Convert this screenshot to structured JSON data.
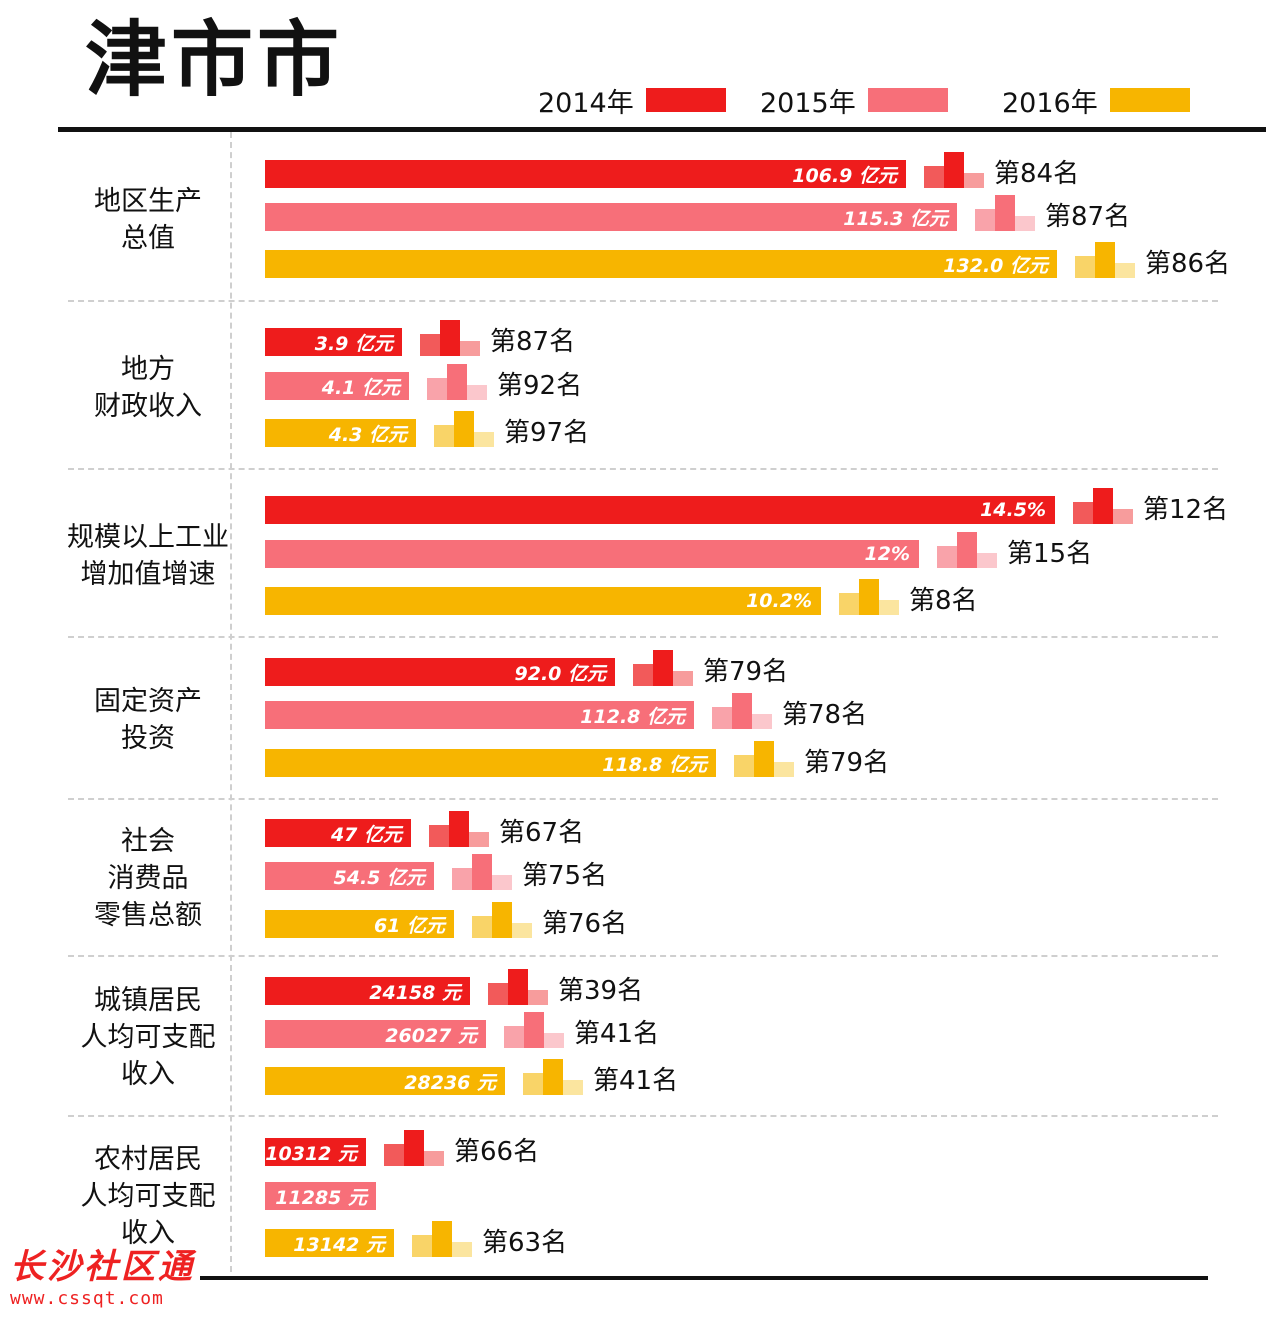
{
  "title": "津市市",
  "legend": [
    {
      "label": "2014年",
      "color": "#ee1c1c"
    },
    {
      "label": "2015年",
      "color": "#f76f79"
    },
    {
      "label": "2016年",
      "color": "#f7b500"
    }
  ],
  "watermark": {
    "name": "长沙社区通",
    "url": "www.cssqt.com"
  },
  "chart_data": {
    "type": "bar",
    "orientation": "horizontal",
    "title": "津市市",
    "series_names": [
      "2014年",
      "2015年",
      "2016年"
    ],
    "categories": [
      {
        "label_lines": [
          "地区生产",
          "总值"
        ],
        "items": [
          {
            "year": "2014年",
            "value": 106.9,
            "value_label": "106.9 亿元",
            "rank_label": "第84名"
          },
          {
            "year": "2015年",
            "value": 115.3,
            "value_label": "115.3 亿元",
            "rank_label": "第87名"
          },
          {
            "year": "2016年",
            "value": 132.0,
            "value_label": "132.0 亿元",
            "rank_label": "第86名"
          }
        ]
      },
      {
        "label_lines": [
          "地方",
          "财政收入"
        ],
        "items": [
          {
            "year": "2014年",
            "value": 3.9,
            "value_label": "3.9 亿元",
            "rank_label": "第87名"
          },
          {
            "year": "2015年",
            "value": 4.1,
            "value_label": "4.1 亿元",
            "rank_label": "第92名"
          },
          {
            "year": "2016年",
            "value": 4.3,
            "value_label": "4.3 亿元",
            "rank_label": "第97名"
          }
        ]
      },
      {
        "label_lines": [
          "规模以上工业",
          "增加值增速"
        ],
        "items": [
          {
            "year": "2014年",
            "value": 14.5,
            "value_label": "14.5%",
            "rank_label": "第12名"
          },
          {
            "year": "2015年",
            "value": 12,
            "value_label": "12%",
            "rank_label": "第15名"
          },
          {
            "year": "2016年",
            "value": 10.2,
            "value_label": "10.2%",
            "rank_label": "第8名"
          }
        ]
      },
      {
        "label_lines": [
          "固定资产",
          "投资"
        ],
        "items": [
          {
            "year": "2014年",
            "value": 92.0,
            "value_label": "92.0 亿元",
            "rank_label": "第79名"
          },
          {
            "year": "2015年",
            "value": 112.8,
            "value_label": "112.8 亿元",
            "rank_label": "第78名"
          },
          {
            "year": "2016年",
            "value": 118.8,
            "value_label": "118.8 亿元",
            "rank_label": "第79名"
          }
        ]
      },
      {
        "label_lines": [
          "社会",
          "消费品",
          "零售总额"
        ],
        "items": [
          {
            "year": "2014年",
            "value": 47,
            "value_label": "47 亿元",
            "rank_label": "第67名"
          },
          {
            "year": "2015年",
            "value": 54.5,
            "value_label": "54.5 亿元",
            "rank_label": "第75名"
          },
          {
            "year": "2016年",
            "value": 61,
            "value_label": "61 亿元",
            "rank_label": "第76名"
          }
        ]
      },
      {
        "label_lines": [
          "城镇居民",
          "人均可支配",
          "收入"
        ],
        "items": [
          {
            "year": "2014年",
            "value": 24158,
            "value_label": "24158 元",
            "rank_label": "第39名"
          },
          {
            "year": "2015年",
            "value": 26027,
            "value_label": "26027 元",
            "rank_label": "第41名"
          },
          {
            "year": "2016年",
            "value": 28236,
            "value_label": "28236 元",
            "rank_label": "第41名"
          }
        ]
      },
      {
        "label_lines": [
          "农村居民",
          "人均可支配",
          "收入"
        ],
        "items": [
          {
            "year": "2014年",
            "value": 10312,
            "value_label": "10312 元",
            "rank_label": "第66名"
          },
          {
            "year": "2015年",
            "value": 11285,
            "value_label": "11285 元",
            "rank_label": ""
          },
          {
            "year": "2016年",
            "value": 13142,
            "value_label": "13142 元",
            "rank_label": "第63名"
          }
        ]
      }
    ]
  }
}
